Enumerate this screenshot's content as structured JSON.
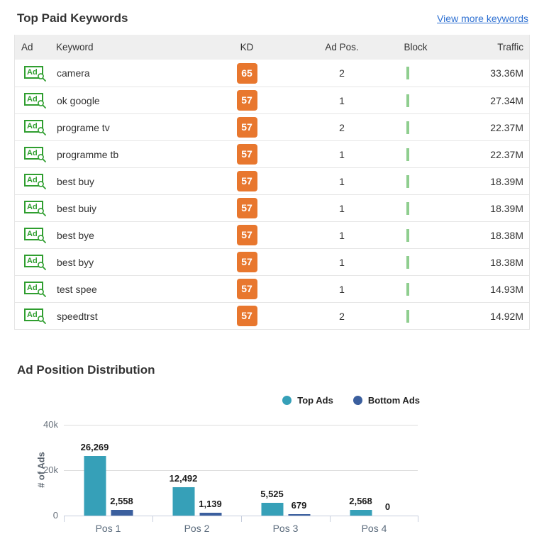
{
  "keywords": {
    "title": "Top Paid Keywords",
    "view_more_label": "View more keywords",
    "ad_icon_label": "Ad",
    "table": {
      "headers": [
        "Ad",
        "Keyword",
        "KD",
        "Ad Pos.",
        "Block",
        "Traffic"
      ],
      "rows": [
        {
          "keyword": "camera",
          "kd": "65",
          "ad_pos": "2",
          "traffic": "33.36M"
        },
        {
          "keyword": "ok google",
          "kd": "57",
          "ad_pos": "1",
          "traffic": "27.34M"
        },
        {
          "keyword": "programe tv",
          "kd": "57",
          "ad_pos": "2",
          "traffic": "22.37M"
        },
        {
          "keyword": "programme tb",
          "kd": "57",
          "ad_pos": "1",
          "traffic": "22.37M"
        },
        {
          "keyword": "best buy",
          "kd": "57",
          "ad_pos": "1",
          "traffic": "18.39M"
        },
        {
          "keyword": "best buiy",
          "kd": "57",
          "ad_pos": "1",
          "traffic": "18.39M"
        },
        {
          "keyword": "best bye",
          "kd": "57",
          "ad_pos": "1",
          "traffic": "18.38M"
        },
        {
          "keyword": "best byy",
          "kd": "57",
          "ad_pos": "1",
          "traffic": "18.38M"
        },
        {
          "keyword": "test spee",
          "kd": "57",
          "ad_pos": "1",
          "traffic": "14.93M"
        },
        {
          "keyword": "speedtrst",
          "kd": "57",
          "ad_pos": "2",
          "traffic": "14.92M"
        }
      ]
    },
    "colors": {
      "kd_badge": "#e8772e",
      "ad_icon_green": "#2f9e2f",
      "block_solid": "#3aab3a",
      "block_light": "#8fce8f",
      "link_blue": "#2f71d2"
    }
  },
  "chart": {
    "title": "Ad Position Distribution"
  },
  "chart_data": {
    "type": "bar",
    "title": "Ad Position Distribution",
    "categories": [
      "Pos 1",
      "Pos 2",
      "Pos 3",
      "Pos 4"
    ],
    "series": [
      {
        "name": "Top Ads",
        "color": "#36a0b8",
        "values": [
          26269,
          12492,
          5525,
          2568
        ],
        "labels": [
          "26,269",
          "12,492",
          "5,525",
          "2,568"
        ]
      },
      {
        "name": "Bottom Ads",
        "color": "#3b5f9e",
        "values": [
          2558,
          1139,
          679,
          0
        ],
        "labels": [
          "2,558",
          "1,139",
          "679",
          "0"
        ]
      }
    ],
    "ylabel": "# of Ads",
    "xlabel": "",
    "ylim": [
      0,
      40000
    ],
    "yticks": [
      {
        "value": 0,
        "label": "0"
      },
      {
        "value": 20000,
        "label": "20k"
      },
      {
        "value": 40000,
        "label": "40k"
      }
    ],
    "grid": true,
    "legend_position": "top-right"
  }
}
